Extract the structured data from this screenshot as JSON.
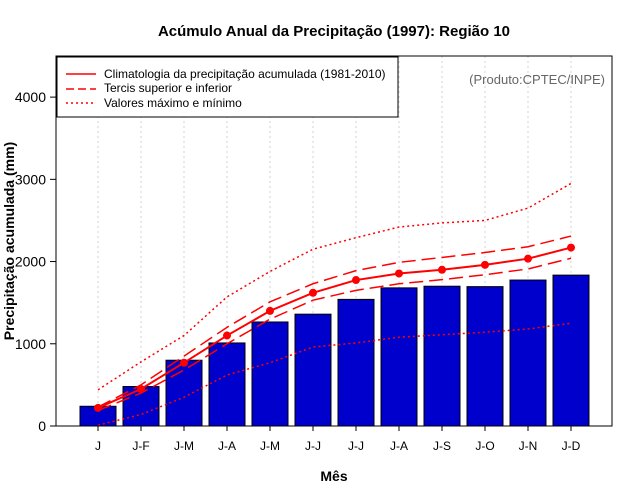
{
  "chart_data": {
    "type": "bar",
    "title": "Acúmulo Anual da Precipitação (1997): Região 10",
    "xlabel": "Mês",
    "ylabel": "Precipitação acumulada (mm)",
    "credit": "(Produto:CPTEC/INPE)",
    "ylim": [
      0,
      4500
    ],
    "yticks": [
      0,
      1000,
      2000,
      3000,
      4000
    ],
    "categories": [
      "J",
      "J-F",
      "J-M",
      "J-A",
      "J-M",
      "J-J",
      "J-J",
      "J-A",
      "J-S",
      "J-O",
      "J-N",
      "J-D"
    ],
    "values": [
      240,
      480,
      800,
      1010,
      1265,
      1360,
      1540,
      1680,
      1700,
      1695,
      1775,
      1835
    ],
    "series": [
      {
        "name": "Climatologia da precipitação acumulada (1981-2010)",
        "style": "solid",
        "markers": true,
        "values": [
          220,
          450,
          770,
          1100,
          1400,
          1620,
          1775,
          1855,
          1900,
          1960,
          2035,
          2170
        ]
      },
      {
        "name": "Tercis superior e inferior",
        "style": "dashed",
        "role": "upper",
        "values": [
          230,
          500,
          850,
          1200,
          1510,
          1730,
          1890,
          1990,
          2050,
          2110,
          2180,
          2310
        ]
      },
      {
        "name": "Tercis superior e inferior",
        "style": "dashed",
        "role": "lower",
        "values": [
          190,
          400,
          680,
          1000,
          1300,
          1530,
          1650,
          1730,
          1780,
          1840,
          1910,
          2040
        ]
      },
      {
        "name": "Valores máximo e mínimo",
        "style": "dotted",
        "role": "max",
        "values": [
          440,
          780,
          1100,
          1570,
          1880,
          2150,
          2290,
          2420,
          2470,
          2500,
          2650,
          2950
        ]
      },
      {
        "name": "Valores máximo e mínimo",
        "style": "dotted",
        "role": "min",
        "values": [
          10,
          140,
          350,
          620,
          770,
          960,
          1010,
          1080,
          1110,
          1140,
          1180,
          1250
        ]
      }
    ],
    "legend": [
      {
        "label": "Climatologia da precipitação acumulada (1981-2010)",
        "style": "solid"
      },
      {
        "label": "Tercis superior e inferior",
        "style": "dashed"
      },
      {
        "label": "Valores máximo e mínimo",
        "style": "dotted"
      }
    ],
    "legend_position": "top-left",
    "grid": true,
    "colors": {
      "bar": "#0000CC",
      "bar_edge": "#000000",
      "line": "#FF0000",
      "grid": "#D3D3D3"
    }
  }
}
